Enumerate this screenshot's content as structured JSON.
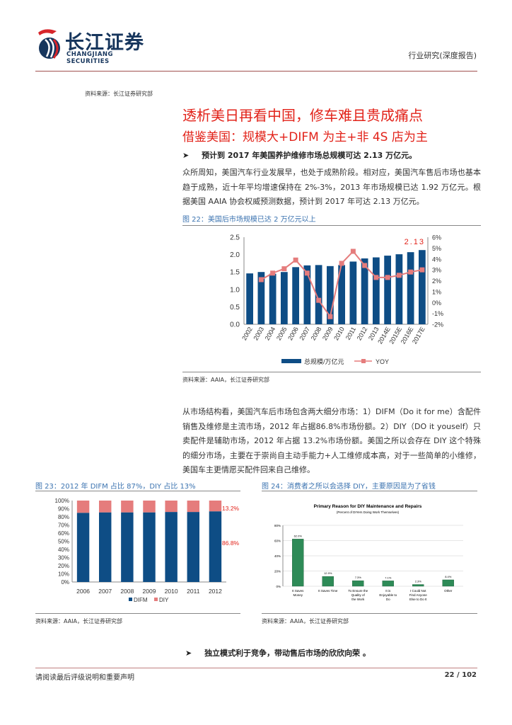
{
  "header": {
    "logo_cn": "长江证券",
    "logo_en": "CHANGJIANG SECURITIES",
    "report_type": "行业研究(深度报告)"
  },
  "top_source": "资料来源：长江证券研究部",
  "title": "透析美日再看中国，修车难且贵成痛点",
  "subtitle": "借鉴美国：规模大+DIFM 为主+非 4S 店为主",
  "bullet1": "预计到 2017 年美国养护维修市场总规模可达 2.13 万亿元。",
  "para1": "众所周知，美国汽车行业发展早，也处于成熟阶段。相对应，美国汽车售后市场也基本趋于成熟，近十年平均增速保持在 2%-3%，2013 年市场规模已达 1.92 万亿元。根据美国 AAIA 协会权威预测数据，预计到 2017 年可达 2.13 万亿元。",
  "fig22": {
    "caption": "图 22：美国后市场规模已达 2 万亿元以上",
    "source": "资料来源：AAIA，长江证券研究部"
  },
  "para2": "从市场结构看，美国汽车后市场包含两大细分市场：1）DIFM（Do it for me）含配件销售及维修是主流市场，2012 年占据86.8%市场份额。2）DIY（DO it youself）只卖配件是辅助市场，2012 年占据 13.2%市场份额。美国之所以会存在 DIY 这个特殊的细分市场，主要在于崇尚自主动手能力+人工维修成本高，对于一些简单的小维修，美国车主更情愿买配件回来自己维修。",
  "fig23": {
    "caption": "图 23：2012 年 DIFM 占比 87%，DIY 占比 13%",
    "source": "资料来源：AAIA，长江证券研究部"
  },
  "fig24": {
    "caption": "图 24：消费者之所以会选择 DIY，主要原因是为了省钱",
    "source": "资料来源：AAIA，长江证券研究部"
  },
  "bullet2": "独立模式利于竞争，带动售后市场的欣欣向荣 。",
  "footer": {
    "disclaimer": "请阅读最后评级说明和重要声明",
    "page": "22 / 102"
  },
  "chart_data": [
    {
      "type": "bar+line",
      "categories": [
        "2002",
        "2003",
        "2004",
        "2005",
        "2006",
        "2007",
        "2008",
        "2009",
        "2010",
        "2011",
        "2012",
        "2013",
        "2014E",
        "2015E",
        "2016E",
        "2017E"
      ],
      "series": [
        {
          "name": "总规模/万亿元",
          "type": "bar",
          "axis": "left",
          "color": "#0e4d85",
          "values": [
            1.46,
            1.5,
            1.45,
            1.5,
            1.64,
            1.69,
            1.7,
            1.67,
            1.7,
            1.8,
            1.89,
            1.92,
            1.97,
            2.01,
            2.07,
            2.13
          ]
        },
        {
          "name": "YOY",
          "type": "line",
          "axis": "right",
          "color": "#e57c7c",
          "values": [
            null,
            2.1,
            2.7,
            3.1,
            3.9,
            2.7,
            0.2,
            -1.3,
            3.6,
            4.7,
            3.4,
            2.3,
            2.3,
            2.5,
            2.8,
            3.0
          ]
        }
      ],
      "ylim": [
        0,
        2.5
      ],
      "yticks": [
        "0.0",
        "0.5",
        "1.0",
        "1.5",
        "2.0",
        "2.5"
      ],
      "y2lim": [
        -2,
        6
      ],
      "y2ticks": [
        "-2%",
        "-1%",
        "0%",
        "1%",
        "2%",
        "3%",
        "4%",
        "5%",
        "6%"
      ],
      "annotation": "2.13",
      "legend": "bottom"
    },
    {
      "type": "stacked-bar",
      "categories": [
        "2006",
        "2007",
        "2008",
        "2009",
        "2010",
        "2011",
        "2012"
      ],
      "series": [
        {
          "name": "DIFM",
          "color": "#0e4d85",
          "values": [
            85.0,
            85.5,
            85.5,
            85.5,
            86.0,
            86.0,
            86.8
          ]
        },
        {
          "name": "DIY",
          "color": "#e57c7c",
          "values": [
            15.0,
            14.5,
            14.5,
            14.5,
            14.0,
            14.0,
            13.2
          ]
        }
      ],
      "ylim": [
        0,
        100
      ],
      "yticks": [
        "0%",
        "10%",
        "20%",
        "30%",
        "40%",
        "50%",
        "60%",
        "70%",
        "80%",
        "90%",
        "100%"
      ],
      "annotations": [
        "13.2%",
        "86.8%"
      ],
      "legend": "bottom"
    },
    {
      "type": "bar",
      "title": "Primary Reason for DIY Maintenance and Repairs",
      "subtitle": "(Percent of DIYers Doing Work Themselves)",
      "categories": [
        "It Saves Money",
        "It Saves Time",
        "To Ensure the Quality of the Work",
        "It is Enjoyable to Do",
        "I Could Not Find Anyone Else to Do It",
        "Other"
      ],
      "values": [
        62.0,
        12.9,
        7.3,
        7.1,
        2.3,
        8.4
      ],
      "labels": [
        "62.0%",
        "12.9%",
        "7.3%",
        "7.1%",
        "2.3%",
        "8.4%"
      ],
      "ylim": [
        0,
        80
      ],
      "yticks": [
        "0%",
        "20%",
        "40%",
        "60%",
        "80%"
      ],
      "color": "#2e8b57"
    }
  ]
}
